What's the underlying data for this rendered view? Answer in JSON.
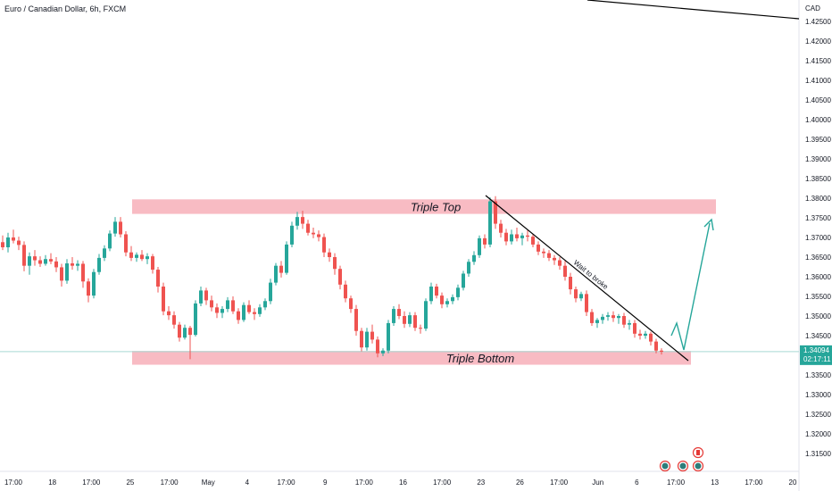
{
  "header": {
    "title": "Euro / Canadian Dollar, 6h, FXCM"
  },
  "colors": {
    "up": "#26a69a",
    "down": "#ef5350",
    "zone": "#f8bbc3",
    "trendline": "#000000",
    "projection": "#26a69a",
    "price_line": "#a6d9d4",
    "price_tag": "#26a69a"
  },
  "chart_data": {
    "type": "candlestick",
    "title": "Euro / Canadian Dollar, 6h, FXCM",
    "currency": "CAD",
    "y_range": [
      1.31,
      1.43
    ],
    "y_ticks": [
      "1.42500",
      "1.42000",
      "1.41500",
      "1.41000",
      "1.40500",
      "1.40000",
      "1.39500",
      "1.39000",
      "1.38500",
      "1.38000",
      "1.37500",
      "1.37000",
      "1.36500",
      "1.36000",
      "1.35500",
      "1.35000",
      "1.34500",
      "1.34000",
      "1.33500",
      "1.33000",
      "1.32500",
      "1.32000",
      "1.31500"
    ],
    "x_ticks": [
      "17:00",
      "18",
      "17:00",
      "25",
      "17:00",
      "May",
      "4",
      "17:00",
      "9",
      "17:00",
      "16",
      "17:00",
      "23",
      "26",
      "17:00",
      "Jun",
      "6",
      "17:00",
      "13",
      "17:00",
      "20"
    ],
    "last_price": {
      "value": "1.34094",
      "countdown": "02:17:11"
    },
    "zones": [
      {
        "label": "Triple Top",
        "from": 1.376,
        "to": 1.3797
      },
      {
        "label": "Triple Bottom",
        "from": 1.3376,
        "to": 1.3411
      }
    ],
    "trendline_label": "Wait to broke",
    "candles": [
      [
        1.3688,
        1.3705,
        1.3668,
        1.3675
      ],
      [
        1.3675,
        1.3712,
        1.3662,
        1.37
      ],
      [
        1.37,
        1.372,
        1.3685,
        1.3692
      ],
      [
        1.3692,
        1.3702,
        1.3668,
        1.3681
      ],
      [
        1.3681,
        1.369,
        1.3614,
        1.3628
      ],
      [
        1.3628,
        1.3662,
        1.3605,
        1.3652
      ],
      [
        1.3652,
        1.3668,
        1.3628,
        1.3642
      ],
      [
        1.3642,
        1.3652,
        1.3625,
        1.3633
      ],
      [
        1.3633,
        1.3655,
        1.3628,
        1.3645
      ],
      [
        1.3645,
        1.366,
        1.3632,
        1.3639
      ],
      [
        1.3639,
        1.365,
        1.3612,
        1.3624
      ],
      [
        1.3624,
        1.3633,
        1.3575,
        1.359
      ],
      [
        1.359,
        1.3645,
        1.3582,
        1.3634
      ],
      [
        1.3634,
        1.365,
        1.3618,
        1.3628
      ],
      [
        1.3628,
        1.3642,
        1.3615,
        1.3633
      ],
      [
        1.3633,
        1.364,
        1.3572,
        1.3588
      ],
      [
        1.3588,
        1.3596,
        1.3535,
        1.3552
      ],
      [
        1.3552,
        1.362,
        1.3545,
        1.3612
      ],
      [
        1.3612,
        1.3658,
        1.3605,
        1.3648
      ],
      [
        1.3648,
        1.368,
        1.364,
        1.3672
      ],
      [
        1.3672,
        1.3718,
        1.3665,
        1.371
      ],
      [
        1.371,
        1.3752,
        1.3702,
        1.374
      ],
      [
        1.374,
        1.3752,
        1.37,
        1.3708
      ],
      [
        1.3708,
        1.3716,
        1.3652,
        1.3662
      ],
      [
        1.3662,
        1.3678,
        1.364,
        1.3648
      ],
      [
        1.3648,
        1.3662,
        1.3638,
        1.3656
      ],
      [
        1.3656,
        1.3668,
        1.364,
        1.3645
      ],
      [
        1.3645,
        1.366,
        1.3632,
        1.3652
      ],
      [
        1.3652,
        1.3658,
        1.3608,
        1.3618
      ],
      [
        1.3618,
        1.3625,
        1.356,
        1.3575
      ],
      [
        1.3575,
        1.3585,
        1.3502,
        1.3512
      ],
      [
        1.3512,
        1.3525,
        1.349,
        1.3502
      ],
      [
        1.3502,
        1.3512,
        1.3468,
        1.3478
      ],
      [
        1.3478,
        1.3485,
        1.3435,
        1.3445
      ],
      [
        1.3445,
        1.3478,
        1.344,
        1.347
      ],
      [
        1.347,
        1.3475,
        1.339,
        1.3452
      ],
      [
        1.3452,
        1.354,
        1.3448,
        1.3532
      ],
      [
        1.3532,
        1.3575,
        1.3525,
        1.3565
      ],
      [
        1.3565,
        1.3572,
        1.3528,
        1.354
      ],
      [
        1.354,
        1.3552,
        1.3512,
        1.3522
      ],
      [
        1.3522,
        1.3532,
        1.3495,
        1.3508
      ],
      [
        1.3508,
        1.3525,
        1.3495,
        1.3518
      ],
      [
        1.3518,
        1.3548,
        1.351,
        1.354
      ],
      [
        1.354,
        1.355,
        1.3505,
        1.3512
      ],
      [
        1.3512,
        1.352,
        1.348,
        1.349
      ],
      [
        1.349,
        1.3535,
        1.3485,
        1.3528
      ],
      [
        1.3528,
        1.354,
        1.3505,
        1.351
      ],
      [
        1.351,
        1.352,
        1.349,
        1.3505
      ],
      [
        1.3505,
        1.353,
        1.3498,
        1.3522
      ],
      [
        1.3522,
        1.3545,
        1.3515,
        1.3538
      ],
      [
        1.3538,
        1.3595,
        1.353,
        1.3585
      ],
      [
        1.3585,
        1.3635,
        1.3578,
        1.3628
      ],
      [
        1.3628,
        1.364,
        1.3598,
        1.361
      ],
      [
        1.361,
        1.369,
        1.3605,
        1.3682
      ],
      [
        1.3682,
        1.374,
        1.3675,
        1.373
      ],
      [
        1.373,
        1.3765,
        1.372,
        1.3752
      ],
      [
        1.3752,
        1.3768,
        1.3722,
        1.3735
      ],
      [
        1.3735,
        1.3745,
        1.3705,
        1.3712
      ],
      [
        1.3712,
        1.3725,
        1.3698,
        1.3708
      ],
      [
        1.3708,
        1.3718,
        1.369,
        1.3701
      ],
      [
        1.3701,
        1.371,
        1.365,
        1.3662
      ],
      [
        1.3662,
        1.3672,
        1.3638,
        1.365
      ],
      [
        1.365,
        1.366,
        1.3605,
        1.362
      ],
      [
        1.362,
        1.3628,
        1.3568,
        1.358
      ],
      [
        1.358,
        1.359,
        1.3535,
        1.3545
      ],
      [
        1.3545,
        1.3552,
        1.3508,
        1.3518
      ],
      [
        1.3518,
        1.3528,
        1.345,
        1.3462
      ],
      [
        1.3462,
        1.347,
        1.341,
        1.342
      ],
      [
        1.342,
        1.347,
        1.3412,
        1.346
      ],
      [
        1.346,
        1.3478,
        1.343,
        1.344
      ],
      [
        1.344,
        1.3448,
        1.3395,
        1.3405
      ],
      [
        1.3405,
        1.3418,
        1.3398,
        1.3412
      ],
      [
        1.3412,
        1.349,
        1.3405,
        1.3482
      ],
      [
        1.3482,
        1.3525,
        1.3475,
        1.3518
      ],
      [
        1.3518,
        1.353,
        1.3492,
        1.35
      ],
      [
        1.35,
        1.3512,
        1.347,
        1.348
      ],
      [
        1.348,
        1.351,
        1.3472,
        1.3502
      ],
      [
        1.3502,
        1.351,
        1.3462,
        1.347
      ],
      [
        1.347,
        1.3478,
        1.3455,
        1.3468
      ],
      [
        1.3468,
        1.3545,
        1.3462,
        1.3538
      ],
      [
        1.3538,
        1.3585,
        1.353,
        1.3575
      ],
      [
        1.3575,
        1.3582,
        1.3545,
        1.3552
      ],
      [
        1.3552,
        1.356,
        1.352,
        1.353
      ],
      [
        1.353,
        1.3545,
        1.3522,
        1.3538
      ],
      [
        1.3538,
        1.3555,
        1.353,
        1.3548
      ],
      [
        1.3548,
        1.358,
        1.354,
        1.3572
      ],
      [
        1.3572,
        1.3615,
        1.3565,
        1.3608
      ],
      [
        1.3608,
        1.3645,
        1.36,
        1.3638
      ],
      [
        1.3638,
        1.3665,
        1.363,
        1.3655
      ],
      [
        1.3655,
        1.3705,
        1.3648,
        1.3698
      ],
      [
        1.3698,
        1.3708,
        1.3672,
        1.3682
      ],
      [
        1.3682,
        1.3802,
        1.3675,
        1.3792
      ],
      [
        1.3792,
        1.3805,
        1.3722,
        1.3735
      ],
      [
        1.3735,
        1.3745,
        1.37,
        1.3712
      ],
      [
        1.3712,
        1.3722,
        1.368,
        1.369
      ],
      [
        1.369,
        1.372,
        1.3682,
        1.3708
      ],
      [
        1.3708,
        1.3725,
        1.369,
        1.3698
      ],
      [
        1.3698,
        1.3712,
        1.368,
        1.3705
      ],
      [
        1.3705,
        1.3718,
        1.369,
        1.3702
      ],
      [
        1.3702,
        1.3708,
        1.3675,
        1.3682
      ],
      [
        1.3682,
        1.369,
        1.3655,
        1.3664
      ],
      [
        1.3664,
        1.3672,
        1.3648,
        1.366
      ],
      [
        1.366,
        1.3668,
        1.364,
        1.3648
      ],
      [
        1.3648,
        1.3655,
        1.363,
        1.3642
      ],
      [
        1.3642,
        1.365,
        1.3618,
        1.3628
      ],
      [
        1.3628,
        1.364,
        1.359,
        1.36
      ],
      [
        1.36,
        1.361,
        1.3555,
        1.3568
      ],
      [
        1.3568,
        1.3575,
        1.3535,
        1.3545
      ],
      [
        1.3545,
        1.3562,
        1.3538,
        1.3556
      ],
      [
        1.3556,
        1.3565,
        1.35,
        1.351
      ],
      [
        1.351,
        1.3518,
        1.3475,
        1.3482
      ],
      [
        1.3482,
        1.3495,
        1.347,
        1.349
      ],
      [
        1.349,
        1.3505,
        1.348,
        1.3498
      ],
      [
        1.3498,
        1.351,
        1.3488,
        1.3502
      ],
      [
        1.3502,
        1.3512,
        1.3485,
        1.3495
      ],
      [
        1.3495,
        1.3505,
        1.348,
        1.35
      ],
      [
        1.35,
        1.3508,
        1.347,
        1.3478
      ],
      [
        1.3478,
        1.349,
        1.3465,
        1.3482
      ],
      [
        1.3482,
        1.349,
        1.3445,
        1.3455
      ],
      [
        1.3455,
        1.3465,
        1.344,
        1.345
      ],
      [
        1.345,
        1.3462,
        1.3442,
        1.3455
      ],
      [
        1.3455,
        1.346,
        1.3425,
        1.3435
      ],
      [
        1.3435,
        1.3442,
        1.3405,
        1.3412
      ],
      [
        1.3412,
        1.3418,
        1.3402,
        1.3409
      ]
    ]
  },
  "events": [
    {
      "icon": "earnings-icon"
    },
    {
      "icon": "earnings-icon"
    },
    {
      "icon": "earnings-icon"
    },
    {
      "icon": "canada-flag-icon"
    }
  ]
}
